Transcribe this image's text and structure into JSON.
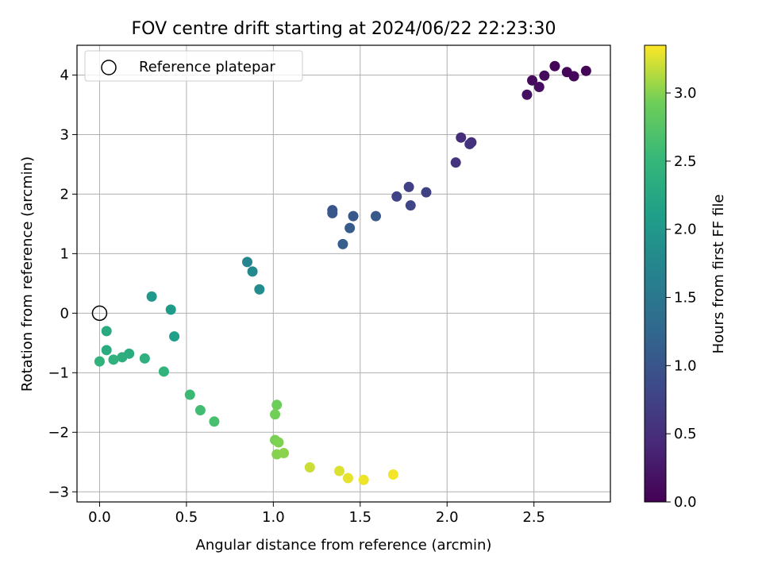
{
  "chart_data": {
    "type": "scatter",
    "title": "FOV centre drift starting at 2024/06/22 22:23:30",
    "xlabel": "Angular distance from reference (arcmin)",
    "ylabel": "Rotation from reference (arcmin)",
    "xlim": [
      -0.13,
      2.94
    ],
    "ylim": [
      -3.17,
      4.5
    ],
    "xticks": [
      0.0,
      0.5,
      1.0,
      1.5,
      2.0,
      2.5
    ],
    "xtick_labels": [
      "0.0",
      "0.5",
      "1.0",
      "1.5",
      "2.0",
      "2.5"
    ],
    "yticks": [
      -3,
      -2,
      -1,
      0,
      1,
      2,
      3,
      4
    ],
    "ytick_labels": [
      "−3",
      "−2",
      "−1",
      "0",
      "1",
      "2",
      "3",
      "4"
    ],
    "grid": true,
    "legend": {
      "position": "top-left",
      "entries": [
        "Reference platepar"
      ]
    },
    "reference_point": {
      "x": 0.0,
      "y": 0.0,
      "label": "Reference platepar"
    },
    "colorbar": {
      "label": "Hours from first FF file",
      "colormap": "viridis",
      "range": [
        0.0,
        3.35
      ],
      "ticks": [
        0.0,
        0.5,
        1.0,
        1.5,
        2.0,
        2.5,
        3.0
      ],
      "tick_labels": [
        "0.0",
        "0.5",
        "1.0",
        "1.5",
        "2.0",
        "2.5",
        "3.0"
      ]
    },
    "points": [
      {
        "x": 2.62,
        "y": 4.15,
        "hours": 0.02
      },
      {
        "x": 2.8,
        "y": 4.07,
        "hours": 0.04
      },
      {
        "x": 2.69,
        "y": 4.05,
        "hours": 0.06
      },
      {
        "x": 2.73,
        "y": 3.98,
        "hours": 0.08
      },
      {
        "x": 2.56,
        "y": 3.99,
        "hours": 0.1
      },
      {
        "x": 2.49,
        "y": 3.91,
        "hours": 0.12
      },
      {
        "x": 2.53,
        "y": 3.8,
        "hours": 0.14
      },
      {
        "x": 2.46,
        "y": 3.67,
        "hours": 0.16
      },
      {
        "x": 2.08,
        "y": 2.95,
        "hours": 0.5
      },
      {
        "x": 2.14,
        "y": 2.87,
        "hours": 0.52
      },
      {
        "x": 2.13,
        "y": 2.84,
        "hours": 0.54
      },
      {
        "x": 2.05,
        "y": 2.53,
        "hours": 0.56
      },
      {
        "x": 1.78,
        "y": 2.12,
        "hours": 0.72
      },
      {
        "x": 1.88,
        "y": 2.03,
        "hours": 0.74
      },
      {
        "x": 1.71,
        "y": 1.96,
        "hours": 0.76
      },
      {
        "x": 1.79,
        "y": 1.81,
        "hours": 0.8
      },
      {
        "x": 1.34,
        "y": 1.73,
        "hours": 1.0
      },
      {
        "x": 1.34,
        "y": 1.68,
        "hours": 1.02
      },
      {
        "x": 1.46,
        "y": 1.63,
        "hours": 1.04
      },
      {
        "x": 1.59,
        "y": 1.63,
        "hours": 1.06
      },
      {
        "x": 1.44,
        "y": 1.43,
        "hours": 1.1
      },
      {
        "x": 1.4,
        "y": 1.16,
        "hours": 1.14
      },
      {
        "x": 0.85,
        "y": 0.86,
        "hours": 1.75
      },
      {
        "x": 0.88,
        "y": 0.7,
        "hours": 1.78
      },
      {
        "x": 0.92,
        "y": 0.4,
        "hours": 1.82
      },
      {
        "x": 0.3,
        "y": 0.28,
        "hours": 2.02
      },
      {
        "x": 0.41,
        "y": 0.06,
        "hours": 2.05
      },
      {
        "x": 0.43,
        "y": -0.39,
        "hours": 2.1
      },
      {
        "x": 0.04,
        "y": -0.3,
        "hours": 2.3
      },
      {
        "x": 0.04,
        "y": -0.62,
        "hours": 2.33
      },
      {
        "x": 0.17,
        "y": -0.68,
        "hours": 2.35
      },
      {
        "x": 0.13,
        "y": -0.74,
        "hours": 2.37
      },
      {
        "x": 0.26,
        "y": -0.76,
        "hours": 2.39
      },
      {
        "x": 0.08,
        "y": -0.78,
        "hours": 2.41
      },
      {
        "x": 0.0,
        "y": -0.81,
        "hours": 2.43
      },
      {
        "x": 0.37,
        "y": -0.98,
        "hours": 2.45
      },
      {
        "x": 0.52,
        "y": -1.37,
        "hours": 2.55
      },
      {
        "x": 0.58,
        "y": -1.63,
        "hours": 2.6
      },
      {
        "x": 0.66,
        "y": -1.82,
        "hours": 2.65
      },
      {
        "x": 1.02,
        "y": -1.54,
        "hours": 2.92
      },
      {
        "x": 1.01,
        "y": -1.7,
        "hours": 2.94
      },
      {
        "x": 1.01,
        "y": -2.13,
        "hours": 2.96
      },
      {
        "x": 1.03,
        "y": -2.17,
        "hours": 2.98
      },
      {
        "x": 1.02,
        "y": -2.37,
        "hours": 3.0
      },
      {
        "x": 1.06,
        "y": -2.35,
        "hours": 3.02
      },
      {
        "x": 1.21,
        "y": -2.59,
        "hours": 3.2
      },
      {
        "x": 1.38,
        "y": -2.65,
        "hours": 3.25
      },
      {
        "x": 1.43,
        "y": -2.77,
        "hours": 3.28
      },
      {
        "x": 1.52,
        "y": -2.8,
        "hours": 3.3
      },
      {
        "x": 1.69,
        "y": -2.71,
        "hours": 3.32
      }
    ]
  }
}
